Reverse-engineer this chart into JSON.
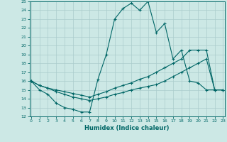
{
  "xlabel": "Humidex (Indice chaleur)",
  "xlim": [
    0,
    23
  ],
  "ylim": [
    12,
    25
  ],
  "xticks": [
    0,
    1,
    2,
    3,
    4,
    5,
    6,
    7,
    8,
    9,
    10,
    11,
    12,
    13,
    14,
    15,
    16,
    17,
    18,
    19,
    20,
    21,
    22,
    23
  ],
  "yticks": [
    12,
    13,
    14,
    15,
    16,
    17,
    18,
    19,
    20,
    21,
    22,
    23,
    24,
    25
  ],
  "bg_color": "#cce8e5",
  "line_color": "#006666",
  "grid_color": "#aacccc",
  "line1_x": [
    0,
    1,
    2,
    3,
    4,
    5,
    6,
    7,
    8,
    9,
    10,
    11,
    12,
    13,
    14,
    15,
    16,
    17,
    18,
    19,
    20,
    21,
    22,
    23
  ],
  "line1_y": [
    16,
    15,
    14.5,
    13.5,
    13.0,
    12.8,
    12.5,
    12.5,
    16.2,
    19.0,
    23.0,
    24.2,
    24.8,
    24.0,
    25.0,
    21.5,
    22.5,
    18.5,
    19.5,
    16.0,
    15.8,
    15.0,
    15.0,
    15.0
  ],
  "line2_x": [
    0,
    1,
    2,
    3,
    4,
    5,
    6,
    7,
    8,
    9,
    10,
    11,
    12,
    13,
    14,
    15,
    16,
    17,
    18,
    19,
    20,
    21,
    22,
    23
  ],
  "line2_y": [
    16.0,
    15.5,
    15.2,
    15.0,
    14.8,
    14.6,
    14.4,
    14.2,
    14.5,
    14.8,
    15.2,
    15.5,
    15.8,
    16.2,
    16.5,
    17.0,
    17.5,
    18.0,
    18.5,
    19.5,
    19.5,
    19.5,
    15.0,
    15.0
  ],
  "line3_x": [
    0,
    1,
    2,
    3,
    4,
    5,
    6,
    7,
    8,
    9,
    10,
    11,
    12,
    13,
    14,
    15,
    16,
    17,
    18,
    19,
    20,
    21,
    22,
    23
  ],
  "line3_y": [
    16.0,
    15.5,
    15.2,
    14.8,
    14.5,
    14.2,
    14.0,
    13.8,
    14.0,
    14.2,
    14.5,
    14.7,
    15.0,
    15.2,
    15.4,
    15.6,
    16.0,
    16.5,
    17.0,
    17.5,
    18.0,
    18.5,
    15.0,
    15.0
  ]
}
